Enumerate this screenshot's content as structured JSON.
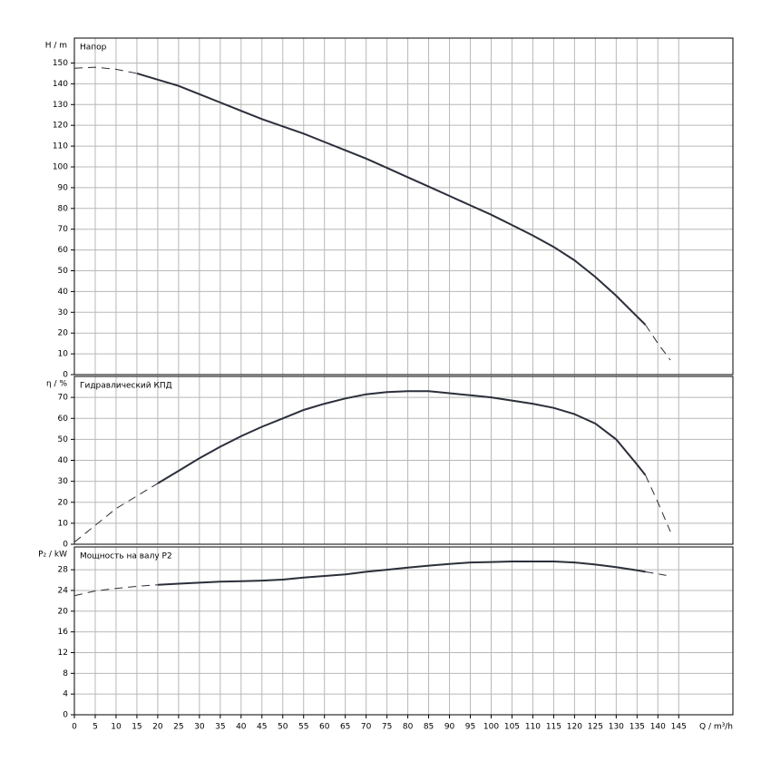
{
  "chart_data": [
    {
      "type": "line",
      "title": "Напор",
      "ylabel": "H / m",
      "ylim": [
        0,
        162
      ],
      "yticks": [
        0,
        10,
        20,
        30,
        40,
        50,
        60,
        70,
        80,
        90,
        100,
        110,
        120,
        130,
        140,
        150
      ],
      "grid": true,
      "color": "#2b2f3a",
      "x": [
        0,
        5,
        10,
        15,
        20,
        25,
        30,
        35,
        40,
        45,
        50,
        55,
        60,
        65,
        70,
        75,
        80,
        85,
        90,
        95,
        100,
        105,
        110,
        115,
        120,
        125,
        130,
        135,
        137,
        140,
        143
      ],
      "series": [
        {
          "style": "dashed",
          "values": [
            147.5,
            148,
            147,
            145,
            null,
            null,
            null,
            null,
            null,
            null,
            null,
            null,
            null,
            null,
            null,
            null,
            null,
            null,
            null,
            null,
            null,
            null,
            null,
            null,
            null,
            null,
            null,
            null,
            24,
            15,
            7
          ]
        },
        {
          "style": "solid",
          "values": [
            null,
            null,
            null,
            145,
            142,
            139,
            135,
            131,
            127,
            123,
            119.5,
            116,
            112,
            108,
            104,
            99.5,
            95,
            90.5,
            86,
            81.5,
            77,
            72,
            67,
            61.5,
            55,
            47,
            38,
            28,
            24,
            null,
            null
          ]
        }
      ]
    },
    {
      "type": "line",
      "title": "Гидравлический КПД",
      "ylabel": "η / %",
      "ylim": [
        0,
        80
      ],
      "yticks": [
        0,
        10,
        20,
        30,
        40,
        50,
        60,
        70
      ],
      "grid": true,
      "color": "#2b2f3a",
      "x": [
        0,
        5,
        10,
        15,
        20,
        25,
        30,
        35,
        40,
        45,
        50,
        55,
        60,
        65,
        70,
        75,
        80,
        85,
        90,
        95,
        100,
        105,
        110,
        115,
        120,
        125,
        130,
        135,
        137,
        140,
        143
      ],
      "series": [
        {
          "style": "dashed",
          "values": [
            1,
            9,
            17,
            23,
            29,
            null,
            null,
            null,
            null,
            null,
            null,
            null,
            null,
            null,
            null,
            null,
            null,
            null,
            null,
            null,
            null,
            null,
            null,
            null,
            null,
            null,
            null,
            null,
            33,
            20,
            6
          ]
        },
        {
          "style": "solid",
          "values": [
            null,
            null,
            null,
            null,
            29,
            35,
            41,
            46.5,
            51.5,
            56,
            60,
            64,
            67,
            69.5,
            71.5,
            72.5,
            73,
            73,
            72,
            71,
            70,
            68.5,
            67,
            65,
            62,
            57.5,
            50,
            38,
            33,
            null,
            null
          ]
        }
      ]
    },
    {
      "type": "line",
      "title": "Мощность на валу P2",
      "ylabel": "P₂ / kW",
      "xlabel": "Q / m³/h",
      "ylim": [
        0,
        32.4
      ],
      "yticks": [
        0,
        4,
        8,
        12,
        16,
        20,
        24,
        28
      ],
      "grid": true,
      "color": "#2b2f3a",
      "xlim": [
        0,
        158
      ],
      "xticks": [
        0,
        5,
        10,
        15,
        20,
        25,
        30,
        35,
        40,
        45,
        50,
        55,
        60,
        65,
        70,
        75,
        80,
        85,
        90,
        95,
        100,
        105,
        110,
        115,
        120,
        125,
        130,
        135,
        140,
        145
      ],
      "x": [
        0,
        5,
        10,
        15,
        20,
        25,
        30,
        35,
        40,
        45,
        50,
        55,
        60,
        65,
        70,
        75,
        80,
        85,
        90,
        95,
        100,
        105,
        110,
        115,
        120,
        125,
        130,
        135,
        137,
        140,
        142
      ],
      "series": [
        {
          "style": "dashed",
          "values": [
            23,
            23.9,
            24.4,
            24.8,
            25.1,
            null,
            null,
            null,
            null,
            null,
            null,
            null,
            null,
            null,
            null,
            null,
            null,
            null,
            null,
            null,
            null,
            null,
            null,
            null,
            null,
            null,
            null,
            null,
            27.6,
            27.2,
            26.9
          ]
        },
        {
          "style": "solid",
          "values": [
            null,
            null,
            null,
            null,
            25.1,
            25.3,
            25.5,
            25.7,
            25.8,
            25.9,
            26.1,
            26.5,
            26.8,
            27.1,
            27.6,
            28.0,
            28.4,
            28.8,
            29.1,
            29.4,
            29.5,
            29.6,
            29.6,
            29.6,
            29.4,
            29.0,
            28.5,
            27.9,
            27.6,
            null,
            null
          ]
        }
      ]
    }
  ]
}
